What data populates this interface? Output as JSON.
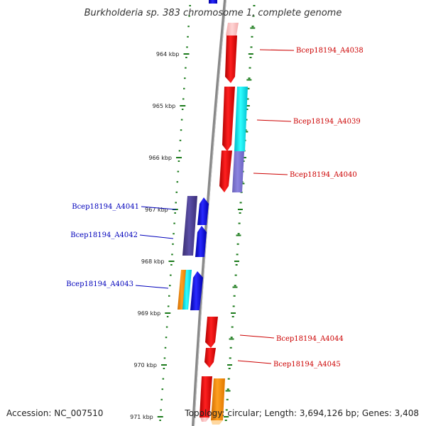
{
  "title": "Burkholderia sp. 383 chromosome 1, complete genome",
  "accession": "Accession: NC_007510",
  "topology": "Topology: circular; Length: 3,694,126 bp; Genes: 3,408",
  "colors": {
    "background": "#ffffff",
    "backbone": "#777777",
    "tick": "#1a7a1a",
    "forward_label": "#cc0000",
    "reverse_label": "#0000bb"
  },
  "ticks": [
    {
      "label": "964 kbp",
      "kbp": 964
    },
    {
      "label": "965 kbp",
      "kbp": 965
    },
    {
      "label": "966 kbp",
      "kbp": 966
    },
    {
      "label": "967 kbp",
      "kbp": 967
    },
    {
      "label": "968 kbp",
      "kbp": 968
    },
    {
      "label": "969 kbp",
      "kbp": 969
    },
    {
      "label": "970 kbp",
      "kbp": 970
    },
    {
      "label": "971 kbp",
      "kbp": 971
    }
  ],
  "genes": [
    {
      "label": "Bcep18194_A4038",
      "strand": "forward"
    },
    {
      "label": "Bcep18194_A4039",
      "strand": "forward"
    },
    {
      "label": "Bcep18194_A4040",
      "strand": "forward"
    },
    {
      "label": "Bcep18194_A4041",
      "strand": "reverse"
    },
    {
      "label": "Bcep18194_A4042",
      "strand": "reverse"
    },
    {
      "label": "Bcep18194_A4043",
      "strand": "reverse"
    },
    {
      "label": "Bcep18194_A4044",
      "strand": "forward"
    },
    {
      "label": "Bcep18194_A4045",
      "strand": "forward"
    }
  ]
}
